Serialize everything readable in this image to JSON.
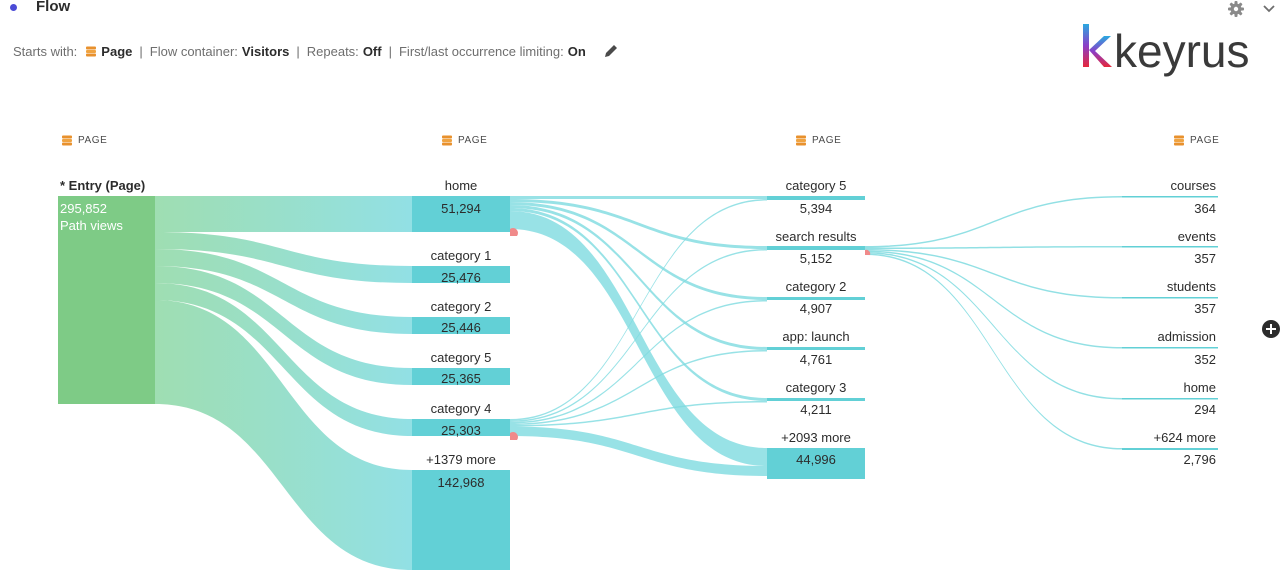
{
  "panel": {
    "title": "Flow"
  },
  "settings": {
    "starts_with_label": "Starts with:",
    "starts_with_value": "Page",
    "container_label": "Flow container:",
    "container_value": "Visitors",
    "repeats_label": "Repeats:",
    "repeats_value": "Off",
    "limiting_label": "First/last occurrence limiting:",
    "limiting_value": "On",
    "separator": "|"
  },
  "logo": {
    "text": "keyrus"
  },
  "columns": [
    {
      "header": "PAGE"
    },
    {
      "header": "PAGE"
    },
    {
      "header": "PAGE"
    },
    {
      "header": "PAGE"
    }
  ],
  "entry": {
    "label": "* Entry (Page)",
    "value": "295,852",
    "sub": "Path views"
  },
  "column2": [
    {
      "label": "home",
      "value": "51,294"
    },
    {
      "label": "category 1",
      "value": "25,476"
    },
    {
      "label": "category 2",
      "value": "25,446"
    },
    {
      "label": "category 5",
      "value": "25,365"
    },
    {
      "label": "category 4",
      "value": "25,303"
    },
    {
      "label": "+1379 more",
      "value": "142,968"
    }
  ],
  "column3": [
    {
      "label": "category 5",
      "value": "5,394"
    },
    {
      "label": "search results",
      "value": "5,152"
    },
    {
      "label": "category 2",
      "value": "4,907"
    },
    {
      "label": "app: launch",
      "value": "4,761"
    },
    {
      "label": "category 3",
      "value": "4,211"
    },
    {
      "label": "+2093 more",
      "value": "44,996"
    }
  ],
  "column4": [
    {
      "label": "courses",
      "value": "364"
    },
    {
      "label": "events",
      "value": "357"
    },
    {
      "label": "students",
      "value": "357"
    },
    {
      "label": "admission",
      "value": "352"
    },
    {
      "label": "home",
      "value": "294"
    },
    {
      "label": "+624 more",
      "value": "2,796"
    }
  ],
  "colors": {
    "entry_node": "#7ecb86",
    "node": "#62d0d6",
    "flow_start": "#8ed8a4",
    "flow_end": "#7fdbe0",
    "accent_dim": "#e8912d",
    "marker": "#f08a8a"
  },
  "icons": {
    "gear": "gear-icon",
    "collapse": "chevron-down-icon",
    "edit": "pencil-icon",
    "add": "add-circle-icon",
    "dimension": "dimension-stack-icon"
  }
}
